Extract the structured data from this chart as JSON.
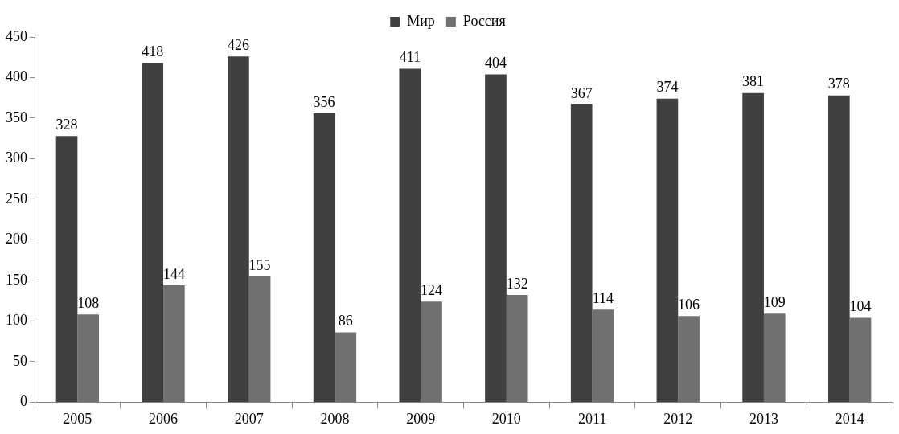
{
  "chart_data": {
    "type": "bar",
    "categories": [
      "2005",
      "2006",
      "2007",
      "2008",
      "2009",
      "2010",
      "2011",
      "2012",
      "2013",
      "2014"
    ],
    "series": [
      {
        "name": "Мир",
        "color": "#404040",
        "values": [
          328,
          418,
          426,
          356,
          411,
          404,
          367,
          374,
          381,
          378
        ]
      },
      {
        "name": "Россия",
        "color": "#707070",
        "values": [
          108,
          144,
          155,
          86,
          124,
          132,
          114,
          106,
          109,
          104
        ]
      }
    ],
    "ylim": [
      0,
      450
    ],
    "yticks": [
      0,
      50,
      100,
      150,
      200,
      250,
      300,
      350,
      400,
      450
    ],
    "grid": false,
    "legend": "top",
    "data_labels": true
  }
}
